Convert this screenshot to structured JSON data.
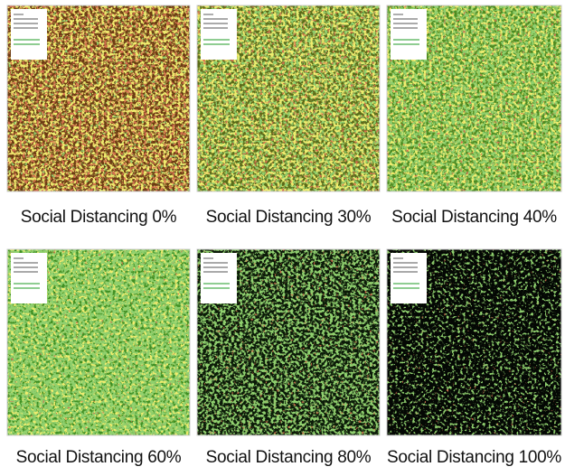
{
  "panels": [
    {
      "caption": "Social Distancing 0%"
    },
    {
      "caption": "Social Distancing 30%"
    },
    {
      "caption": "Social Distancing 40%"
    },
    {
      "caption": "Social Distancing 60%"
    },
    {
      "caption": "Social Distancing 80%"
    },
    {
      "caption": "Social Distancing 100%"
    }
  ]
}
